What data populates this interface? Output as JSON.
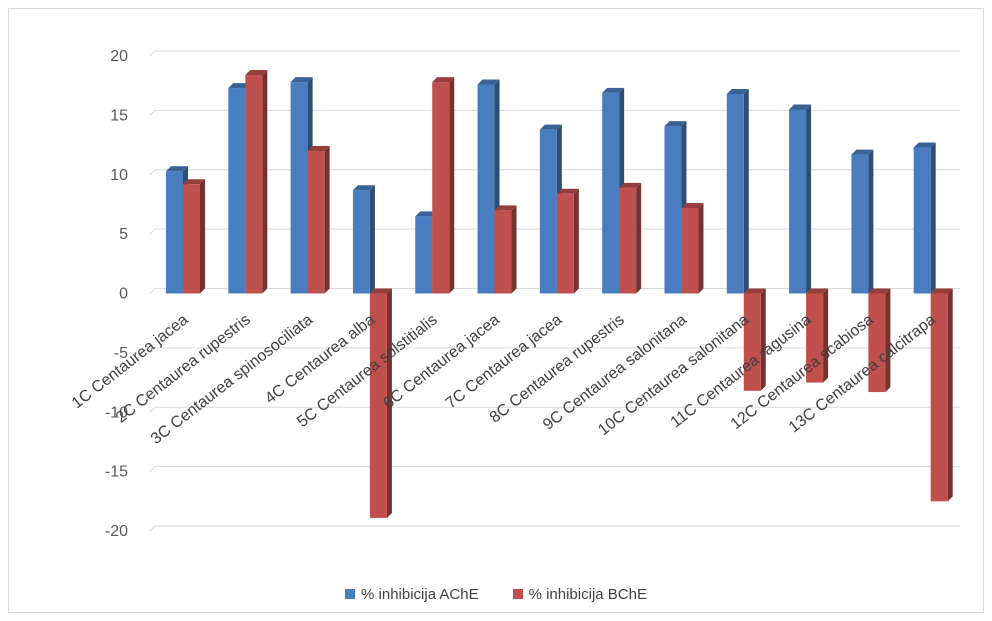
{
  "chart_data": {
    "type": "bar",
    "title": "",
    "xlabel": "",
    "ylabel": "",
    "ylim": [
      -20,
      20
    ],
    "yticks": [
      20,
      15,
      10,
      5,
      0,
      -5,
      -10,
      -15,
      -20
    ],
    "grid": true,
    "legend_position": "bottom",
    "categories": [
      "1C  Centaurea jacea",
      "2C Centaurea rupestris",
      "3C Centaurea spinosociliata",
      "4C Centaurea alba",
      "5C Centaurea solstitialis",
      "6C Centaurea jacea",
      "7C Centaurea jacea",
      "8C Centaurea rupestris",
      "9C Centaurea salonitana",
      "10C Centaurea salonitana",
      "11C Centaurea ragusina",
      "12C Centaurea scabiosa",
      "13C Centaurea calcitrapa"
    ],
    "series": [
      {
        "name": "% inhibicija AChE",
        "color": "#4a7dbf",
        "values": [
          10.3,
          17.3,
          17.8,
          8.7,
          6.5,
          17.6,
          13.8,
          16.9,
          14.1,
          16.8,
          15.5,
          11.7,
          12.3
        ]
      },
      {
        "name": "% inhibicija BChE",
        "color": "#c0504d",
        "values": [
          9.2,
          18.4,
          12.0,
          -18.9,
          17.8,
          7.0,
          8.4,
          8.9,
          7.2,
          -8.2,
          -7.5,
          -8.3,
          -17.5
        ]
      }
    ]
  }
}
